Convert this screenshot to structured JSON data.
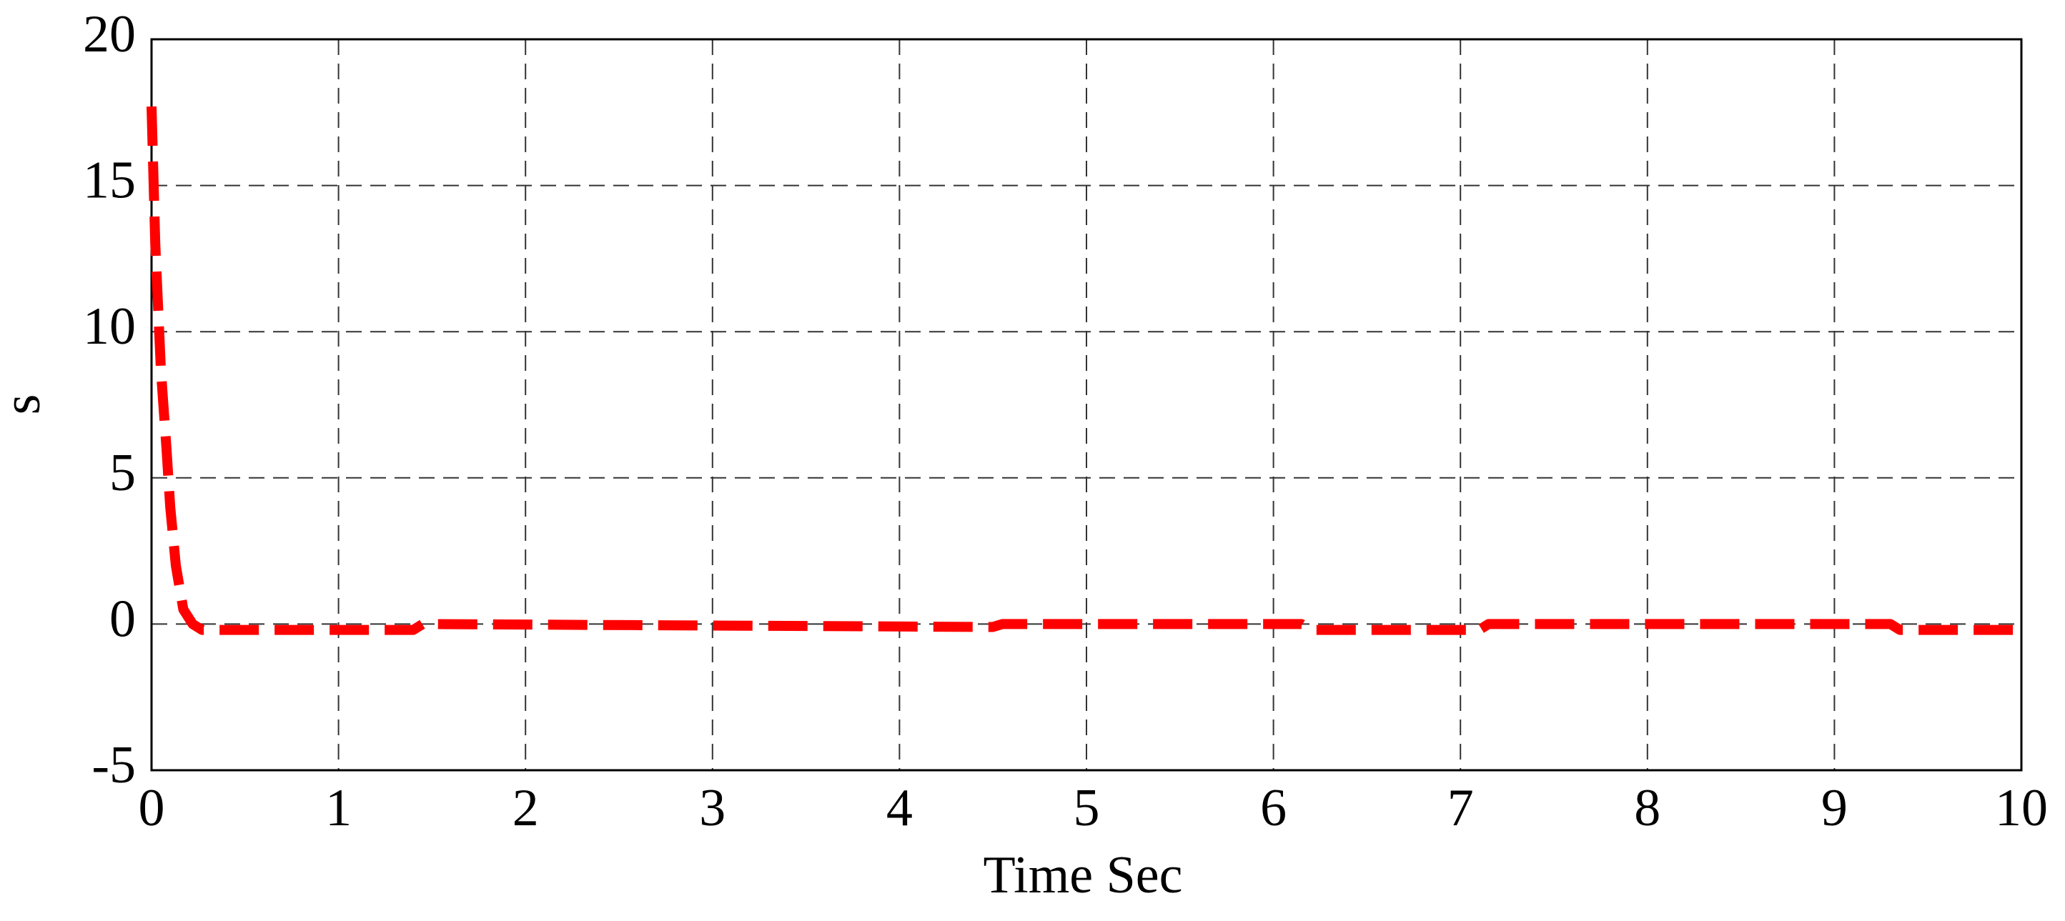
{
  "chart_data": {
    "type": "line",
    "xlabel": "Time Sec",
    "ylabel": "s",
    "x": [
      0,
      0.02,
      0.05,
      0.08,
      0.1,
      0.13,
      0.17,
      0.22,
      0.27,
      1.4,
      1.45,
      4.5,
      4.55,
      6.15,
      6.2,
      7.1,
      7.15,
      9.3,
      9.35,
      10
    ],
    "series": [
      {
        "color": "#ff0000",
        "values": [
          17.7,
          13,
          8.7,
          6,
          4,
          2,
          0.5,
          0,
          -0.2,
          -0.2,
          0,
          -0.1,
          0,
          0,
          -0.2,
          -0.2,
          0,
          0,
          -0.2,
          -0.2
        ]
      }
    ],
    "xlim": [
      0,
      10
    ],
    "xticks": [
      0,
      1,
      2,
      3,
      4,
      5,
      6,
      7,
      8,
      9,
      10
    ],
    "ylim": [
      -5,
      20
    ],
    "yticks": [
      -5,
      0,
      5,
      10,
      15,
      20
    ],
    "grid": true
  }
}
